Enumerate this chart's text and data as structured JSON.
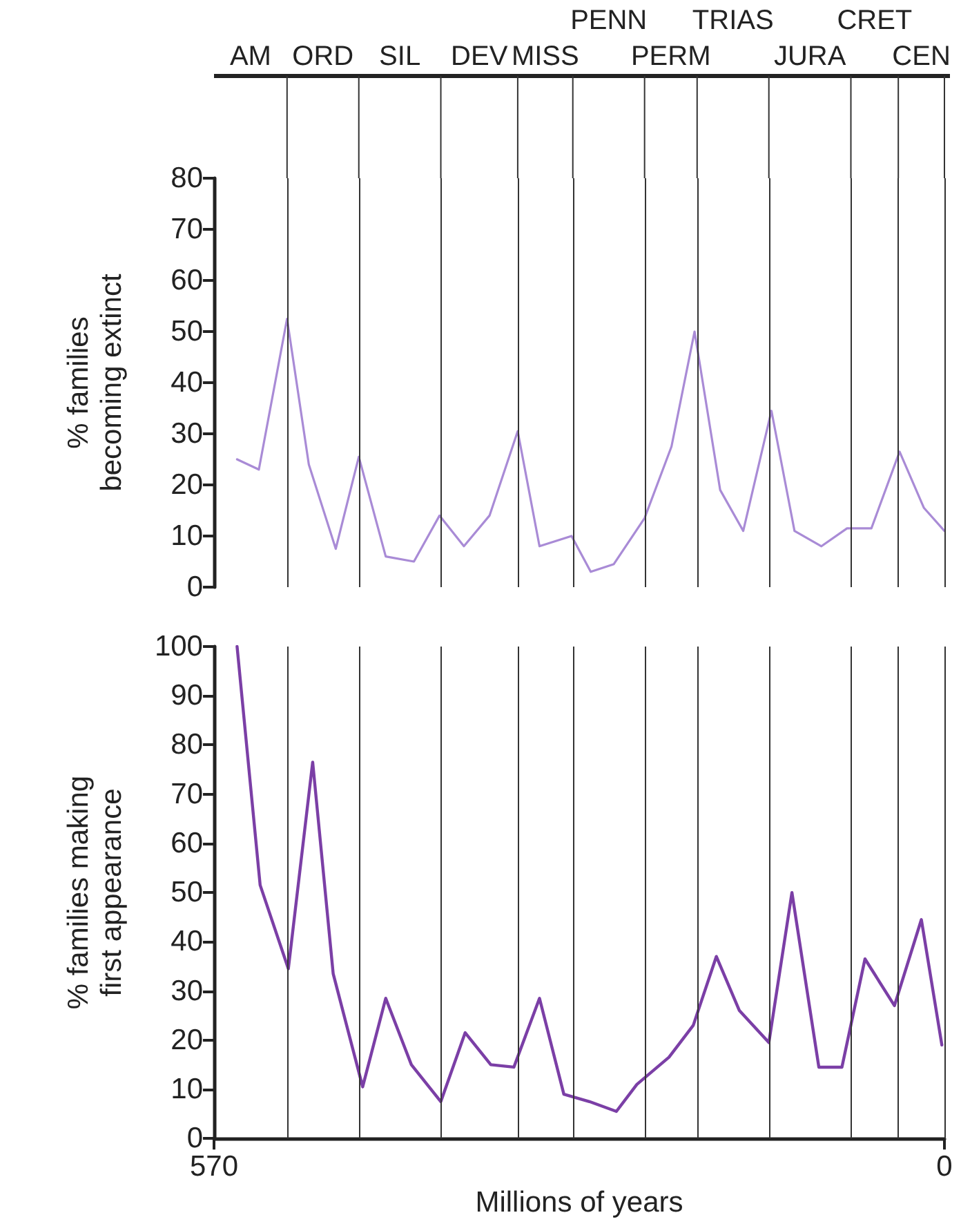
{
  "chart_data": [
    {
      "type": "line",
      "ylabel": "% families becoming extinct",
      "color": "#a98bd6",
      "marker": "none",
      "line_style": "solid",
      "tick_labels": "y",
      "xlim": [
        570,
        0
      ],
      "ylim": [
        0,
        80
      ],
      "yticks": [
        0,
        10,
        20,
        30,
        40,
        50,
        60,
        70,
        80
      ],
      "x": [
        552,
        535,
        513,
        496,
        475,
        457,
        436,
        414,
        394,
        375,
        355,
        333,
        316,
        291,
        276,
        258,
        234,
        213,
        195,
        175,
        157,
        135,
        117,
        96,
        76,
        57,
        35,
        16,
        0
      ],
      "values": [
        25,
        23,
        52.5,
        24,
        7.5,
        25.5,
        6,
        5,
        14,
        8,
        14,
        30.5,
        8,
        10,
        3,
        4.5,
        13.5,
        27.5,
        50,
        19,
        11,
        34.5,
        11,
        8,
        11.5,
        11.5,
        26.5,
        15.5,
        11
      ],
      "ref_lines": [
        {
          "axis": "x",
          "value": 513,
          "color": "#333333"
        },
        {
          "axis": "x",
          "value": 457,
          "color": "#333333"
        },
        {
          "axis": "x",
          "value": 393,
          "color": "#333333"
        },
        {
          "axis": "x",
          "value": 333,
          "color": "#333333"
        },
        {
          "axis": "x",
          "value": 290,
          "color": "#333333"
        },
        {
          "axis": "x",
          "value": 234,
          "color": "#333333"
        },
        {
          "axis": "x",
          "value": 193,
          "color": "#333333"
        },
        {
          "axis": "x",
          "value": 137,
          "color": "#333333"
        },
        {
          "axis": "x",
          "value": 73,
          "color": "#333333"
        },
        {
          "axis": "x",
          "value": 36,
          "color": "#333333"
        },
        {
          "axis": "x",
          "value": 0,
          "color": "#333333"
        }
      ],
      "annotations": [
        "AM",
        "ORD",
        "SIL",
        "DEV",
        "MISS",
        "PENN",
        "PERM",
        "TRIAS",
        "JURA",
        "CRET",
        "CEN"
      ]
    },
    {
      "type": "line",
      "ylabel": "% families making first appearance",
      "xlabel": "Millions of years",
      "color": "#7b3fa6",
      "marker": "none",
      "line_style": "solid",
      "xlim": [
        570,
        0
      ],
      "xticks": [
        570,
        0
      ],
      "ylim": [
        0,
        100
      ],
      "yticks": [
        0,
        10,
        20,
        30,
        40,
        50,
        60,
        70,
        80,
        90,
        100
      ],
      "x": [
        552,
        534,
        512,
        493,
        477,
        454,
        436,
        416,
        393,
        374,
        354,
        336,
        316,
        297,
        277,
        256,
        240,
        215,
        196,
        178,
        160,
        137,
        119,
        98,
        80,
        62,
        39,
        18,
        2
      ],
      "values": [
        100,
        51.5,
        34.5,
        76.5,
        33.5,
        10.5,
        28.5,
        15,
        7.5,
        21.5,
        15,
        14.5,
        28.5,
        9,
        7.5,
        5.5,
        11,
        16.5,
        23,
        37,
        26,
        19.5,
        50,
        14.5,
        14.5,
        36.5,
        27,
        44.5,
        19
      ],
      "ref_lines": [
        {
          "axis": "x",
          "value": 513,
          "color": "#333333"
        },
        {
          "axis": "x",
          "value": 457,
          "color": "#333333"
        },
        {
          "axis": "x",
          "value": 393,
          "color": "#333333"
        },
        {
          "axis": "x",
          "value": 333,
          "color": "#333333"
        },
        {
          "axis": "x",
          "value": 290,
          "color": "#333333"
        },
        {
          "axis": "x",
          "value": 234,
          "color": "#333333"
        },
        {
          "axis": "x",
          "value": 193,
          "color": "#333333"
        },
        {
          "axis": "x",
          "value": 137,
          "color": "#333333"
        },
        {
          "axis": "x",
          "value": 73,
          "color": "#333333"
        },
        {
          "axis": "x",
          "value": 36,
          "color": "#333333"
        },
        {
          "axis": "x",
          "value": 0,
          "color": "#333333"
        }
      ]
    }
  ]
}
